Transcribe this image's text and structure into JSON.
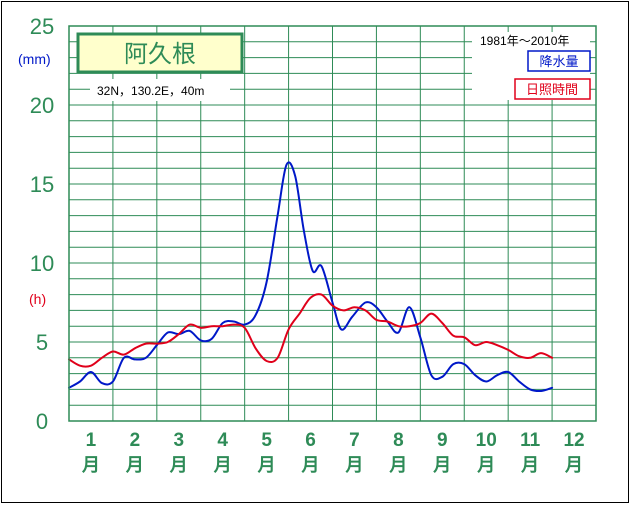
{
  "station": "阿久根",
  "location_info": "32N，130.2E，40m",
  "period": "1981年～2010年",
  "units": {
    "left_mm": "(mm)",
    "left_h": "(h)"
  },
  "legend": {
    "precip": {
      "label": "降水量",
      "color": "#0018c8"
    },
    "sun": {
      "label": "日照時間",
      "color": "#e0001a"
    }
  },
  "colors": {
    "grid": "#2e8b57",
    "axis_text": "#2e8b57",
    "frame": "#2e8b57",
    "station_box_bg": "#ffffcc"
  },
  "chart_data": {
    "type": "line",
    "title": "",
    "y_ticks": [
      "0",
      "5",
      "10",
      "15",
      "20",
      "25"
    ],
    "ylim": [
      0,
      25
    ],
    "xlim": [
      1,
      13
    ],
    "grid": true,
    "legend_position": "top-right",
    "month_labels": [
      "1",
      "2",
      "3",
      "4",
      "5",
      "6",
      "7",
      "8",
      "9",
      "10",
      "11",
      "12"
    ],
    "month_suffix": "月",
    "series": [
      {
        "name": "降水量",
        "color": "#0018c8",
        "points": [
          [
            1.0,
            2.1
          ],
          [
            1.25,
            2.5
          ],
          [
            1.5,
            3.1
          ],
          [
            1.75,
            2.4
          ],
          [
            2.0,
            2.5
          ],
          [
            2.25,
            4.0
          ],
          [
            2.5,
            3.9
          ],
          [
            2.75,
            4.0
          ],
          [
            3.0,
            4.8
          ],
          [
            3.25,
            5.6
          ],
          [
            3.5,
            5.5
          ],
          [
            3.75,
            5.7
          ],
          [
            4.0,
            5.1
          ],
          [
            4.25,
            5.2
          ],
          [
            4.5,
            6.2
          ],
          [
            4.75,
            6.3
          ],
          [
            5.0,
            6.1
          ],
          [
            5.25,
            6.7
          ],
          [
            5.5,
            8.8
          ],
          [
            5.75,
            13.0
          ],
          [
            5.95,
            16.2
          ],
          [
            6.15,
            15.5
          ],
          [
            6.35,
            12.0
          ],
          [
            6.55,
            9.5
          ],
          [
            6.75,
            9.8
          ],
          [
            7.0,
            7.5
          ],
          [
            7.2,
            5.8
          ],
          [
            7.45,
            6.6
          ],
          [
            7.75,
            7.5
          ],
          [
            8.0,
            7.2
          ],
          [
            8.25,
            6.3
          ],
          [
            8.5,
            5.6
          ],
          [
            8.75,
            7.2
          ],
          [
            9.0,
            5.3
          ],
          [
            9.25,
            2.9
          ],
          [
            9.5,
            2.8
          ],
          [
            9.75,
            3.6
          ],
          [
            10.0,
            3.6
          ],
          [
            10.25,
            2.9
          ],
          [
            10.5,
            2.5
          ],
          [
            10.75,
            2.9
          ],
          [
            11.0,
            3.1
          ],
          [
            11.25,
            2.5
          ],
          [
            11.5,
            2.0
          ],
          [
            11.75,
            1.9
          ],
          [
            12.0,
            2.1
          ]
        ]
      },
      {
        "name": "日照時間",
        "color": "#e0001a",
        "points": [
          [
            1.0,
            3.9
          ],
          [
            1.25,
            3.5
          ],
          [
            1.5,
            3.5
          ],
          [
            1.75,
            4.0
          ],
          [
            2.0,
            4.4
          ],
          [
            2.25,
            4.2
          ],
          [
            2.5,
            4.6
          ],
          [
            2.75,
            4.9
          ],
          [
            3.0,
            4.9
          ],
          [
            3.25,
            5.0
          ],
          [
            3.5,
            5.5
          ],
          [
            3.75,
            6.1
          ],
          [
            4.0,
            5.9
          ],
          [
            4.25,
            6.0
          ],
          [
            4.5,
            6.0
          ],
          [
            4.75,
            6.1
          ],
          [
            5.0,
            5.9
          ],
          [
            5.25,
            4.6
          ],
          [
            5.5,
            3.8
          ],
          [
            5.75,
            4.0
          ],
          [
            6.0,
            5.8
          ],
          [
            6.25,
            6.8
          ],
          [
            6.5,
            7.8
          ],
          [
            6.75,
            8.0
          ],
          [
            7.0,
            7.3
          ],
          [
            7.25,
            7.0
          ],
          [
            7.5,
            7.2
          ],
          [
            7.75,
            7.0
          ],
          [
            8.0,
            6.4
          ],
          [
            8.25,
            6.3
          ],
          [
            8.5,
            6.0
          ],
          [
            8.75,
            6.0
          ],
          [
            9.0,
            6.2
          ],
          [
            9.25,
            6.8
          ],
          [
            9.5,
            6.2
          ],
          [
            9.75,
            5.4
          ],
          [
            10.0,
            5.3
          ],
          [
            10.25,
            4.8
          ],
          [
            10.5,
            5.0
          ],
          [
            10.75,
            4.8
          ],
          [
            11.0,
            4.5
          ],
          [
            11.25,
            4.1
          ],
          [
            11.5,
            4.0
          ],
          [
            11.75,
            4.3
          ],
          [
            12.0,
            4.0
          ]
        ]
      }
    ]
  }
}
